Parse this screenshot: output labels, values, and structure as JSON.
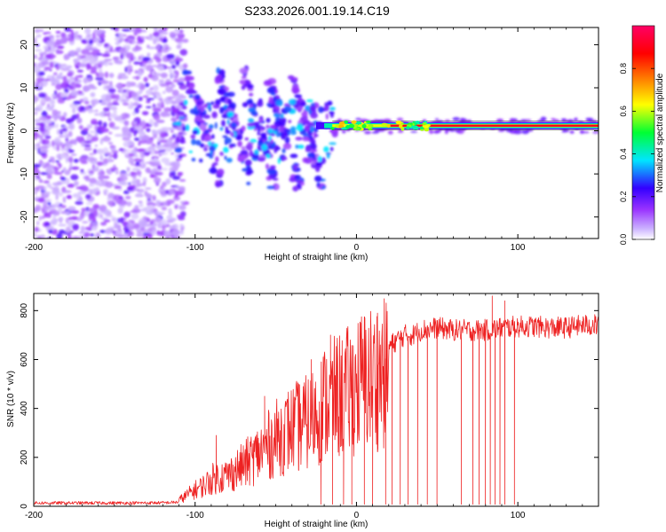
{
  "title": "S233.2026.001.19.14.C19",
  "chart_data": [
    {
      "type": "heatmap",
      "xlabel": "Height of straight line (km)",
      "ylabel": "Frequency (Hz)",
      "xlim": [
        -200,
        150
      ],
      "ylim": [
        -25,
        24
      ],
      "xticks": [
        -200,
        -100,
        0,
        100
      ],
      "yticks": [
        -20,
        -10,
        0,
        10,
        20
      ],
      "colorbar": {
        "label": "Normalized spectral amplitude",
        "range": [
          0,
          1
        ],
        "ticks": [
          0.0,
          0.2,
          0.4,
          0.6,
          0.8
        ],
        "tick_labels": [
          "0.0",
          "0.2",
          "0.4",
          "0.6",
          "0.8"
        ],
        "colors": [
          "#ffffff",
          "#9933ff",
          "#3300ff",
          "#00e5ff",
          "#00ff33",
          "#ffff00",
          "#ff7f00",
          "#ff0000",
          "#ff0066"
        ]
      },
      "features": {
        "noise_region_x": [
          -200,
          -112
        ],
        "tone_line_frequency": 1.2,
        "tone_start_x": -15,
        "diagonal_streaks_center_x": [
          -95,
          -75,
          -60,
          -45,
          -30
        ]
      }
    },
    {
      "type": "line",
      "xlabel": "Height of straight line (km)",
      "ylabel": "SNR (10 * v/v)",
      "xlim": [
        -200,
        150
      ],
      "ylim": [
        0,
        870
      ],
      "xticks": [
        -200,
        -100,
        0,
        100
      ],
      "yticks": [
        0,
        200,
        400,
        600,
        800
      ],
      "color": "#ee2222",
      "series": [
        {
          "name": "SNR",
          "x": [
            -200,
            -180,
            -160,
            -140,
            -120,
            -110,
            -100,
            -95,
            -88,
            -80,
            -70,
            -60,
            -50,
            -40,
            -30,
            -25,
            -20,
            -15,
            -10,
            -5,
            0,
            5,
            10,
            15,
            20,
            25,
            30,
            35,
            40,
            50,
            60,
            70,
            80,
            90,
            100,
            110,
            120,
            130,
            140,
            150
          ],
          "values": [
            20,
            20,
            20,
            20,
            22,
            30,
            80,
            100,
            140,
            150,
            200,
            260,
            330,
            380,
            410,
            450,
            500,
            520,
            540,
            560,
            590,
            620,
            630,
            640,
            650,
            680,
            700,
            700,
            720,
            730,
            720,
            720,
            720,
            730,
            735,
            735,
            730,
            730,
            740,
            740
          ]
        }
      ],
      "dropouts_x": [
        -22,
        -15,
        -8,
        -3,
        5,
        10,
        18,
        22,
        27,
        32,
        38,
        44,
        50,
        65,
        72,
        76,
        80,
        83,
        86,
        89,
        92,
        98
      ],
      "spikes": [
        {
          "x": -87,
          "y": 290
        },
        {
          "x": -57,
          "y": 450
        },
        {
          "x": -36,
          "y": 500
        },
        {
          "x": -28,
          "y": 600
        },
        {
          "x": -16,
          "y": 700
        },
        {
          "x": 13,
          "y": 790
        },
        {
          "x": 84,
          "y": 860
        },
        {
          "x": 92,
          "y": 840
        }
      ]
    }
  ]
}
